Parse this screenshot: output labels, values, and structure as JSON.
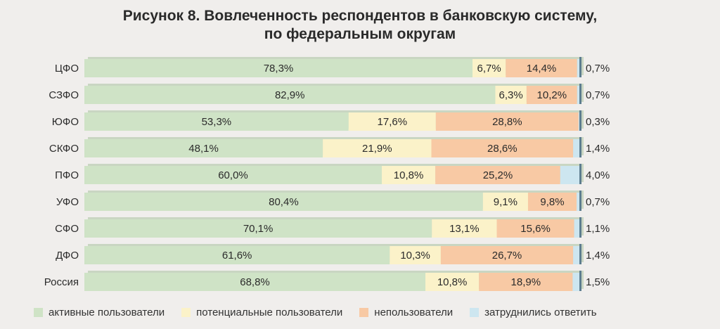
{
  "title": {
    "line1": "Рисунок 8. Вовлеченность респондентов в банковскую систему,",
    "line2": "по федеральным округам"
  },
  "colors": {
    "active": "#cfe3c6",
    "potential": "#fbf2c9",
    "non": "#f8c9a4",
    "hard": "#cde6f0"
  },
  "chart_data": {
    "type": "bar",
    "orientation": "horizontal",
    "stacked": true,
    "xlim": [
      0,
      100
    ],
    "categories": [
      "ЦФО",
      "СЗФО",
      "ЮФО",
      "СКФО",
      "ПФО",
      "УФО",
      "СФО",
      "ДФО",
      "Россия"
    ],
    "series": [
      {
        "name": "активные пользователи",
        "color_key": "active",
        "values": [
          78.3,
          82.9,
          53.3,
          48.1,
          60.0,
          80.4,
          70.1,
          61.6,
          68.8
        ],
        "labels": [
          "78,3%",
          "82,9%",
          "53,3%",
          "48,1%",
          "60,0%",
          "80,4%",
          "70,1%",
          "61,6%",
          "68,8%"
        ]
      },
      {
        "name": "потенциальные пользователи",
        "color_key": "potential",
        "values": [
          6.7,
          6.3,
          17.6,
          21.9,
          10.8,
          9.1,
          13.1,
          10.3,
          10.8
        ],
        "labels": [
          "6,7%",
          "6,3%",
          "17,6%",
          "21,9%",
          "10,8%",
          "9,1%",
          "13,1%",
          "10,3%",
          "10,8%"
        ]
      },
      {
        "name": "непользователи",
        "color_key": "non",
        "values": [
          14.4,
          10.2,
          28.8,
          28.6,
          25.2,
          9.8,
          15.6,
          26.7,
          18.9
        ],
        "labels": [
          "14,4%",
          "10,2%",
          "28,8%",
          "28,6%",
          "25,2%",
          "9,8%",
          "15,6%",
          "26,7%",
          "18,9%"
        ]
      },
      {
        "name": "затруднились ответить",
        "color_key": "hard",
        "values": [
          0.7,
          0.7,
          0.3,
          1.4,
          4.0,
          0.7,
          1.1,
          1.4,
          1.5
        ],
        "labels": [
          "0,7%",
          "0,7%",
          "0,3%",
          "1,4%",
          "4,0%",
          "0,7%",
          "1,1%",
          "1,4%",
          "1,5%"
        ]
      }
    ],
    "legend_position": "bottom",
    "grid": false
  }
}
